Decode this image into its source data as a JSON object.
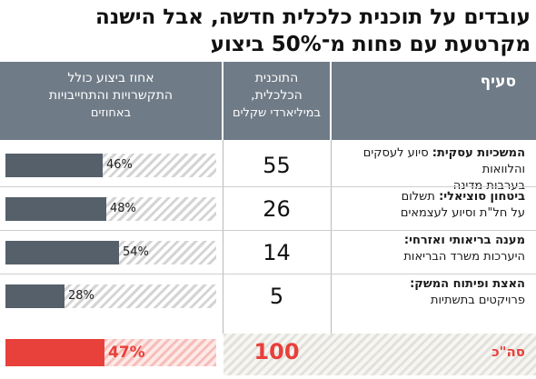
{
  "title": "עובדים על תוכנית כלכלית חדשה, אבל הישנה מקרטעת עם פחות מ־50% ביצוע",
  "header": {
    "section": "סעיף",
    "program_line1": "התוכנית",
    "program_line2": "הכלכלית,",
    "program_unit": "במיליארדי שקלים",
    "pct_line1": "אחוז ביצוע כולל",
    "pct_line2": "התקשרויות והתחייבויות",
    "pct_unit": "באחוזים"
  },
  "rows": [
    {
      "name": "המשכיות עסקית:",
      "desc1": "סיוע לעסקים והלוואות",
      "desc2": "בערבות מדינה",
      "program": "55",
      "pct_label": "46%"
    },
    {
      "name": "ביטחון סוציאלי:",
      "desc1": "תשלום",
      "desc2": "על חל\"ת וסיוע לעצמאים",
      "program": "26",
      "pct_label": "48%"
    },
    {
      "name": "מענה בריאותי ואזרחי:",
      "desc1": "",
      "desc2": "היערכות משרד הבריאות",
      "program": "14",
      "pct_label": "54%"
    },
    {
      "name": "האצת ופיתוח המשק:",
      "desc1": "",
      "desc2": "פרויקטים בתשתיות",
      "program": "5",
      "pct_label": "28%"
    }
  ],
  "total": {
    "label": "סה\"כ",
    "program": "100",
    "pct_label": "47%"
  },
  "colors": {
    "header_bg": "#6f7b87",
    "bar": "#55606a",
    "accent": "#e8403a"
  },
  "chart_data": {
    "type": "table",
    "columns": [
      "סעיף",
      "התוכנית הכלכלית, במיליארדי שקלים",
      "אחוז ביצוע כולל התקשרויות והתחייבויות באחוזים"
    ],
    "categories": [
      "המשכיות עסקית",
      "ביטחון סוציאלי",
      "מענה בריאותי ואזרחי",
      "האצת ופיתוח המשק",
      "סה\"כ"
    ],
    "series": [
      {
        "name": "התוכנית הכלכלית, במיליארדי שקלים",
        "values": [
          55,
          26,
          14,
          5,
          100
        ]
      },
      {
        "name": "אחוז ביצוע כולל התקשרויות והתחייבויות",
        "values": [
          46,
          48,
          54,
          28,
          47
        ]
      }
    ],
    "pct_range": [
      0,
      100
    ]
  }
}
